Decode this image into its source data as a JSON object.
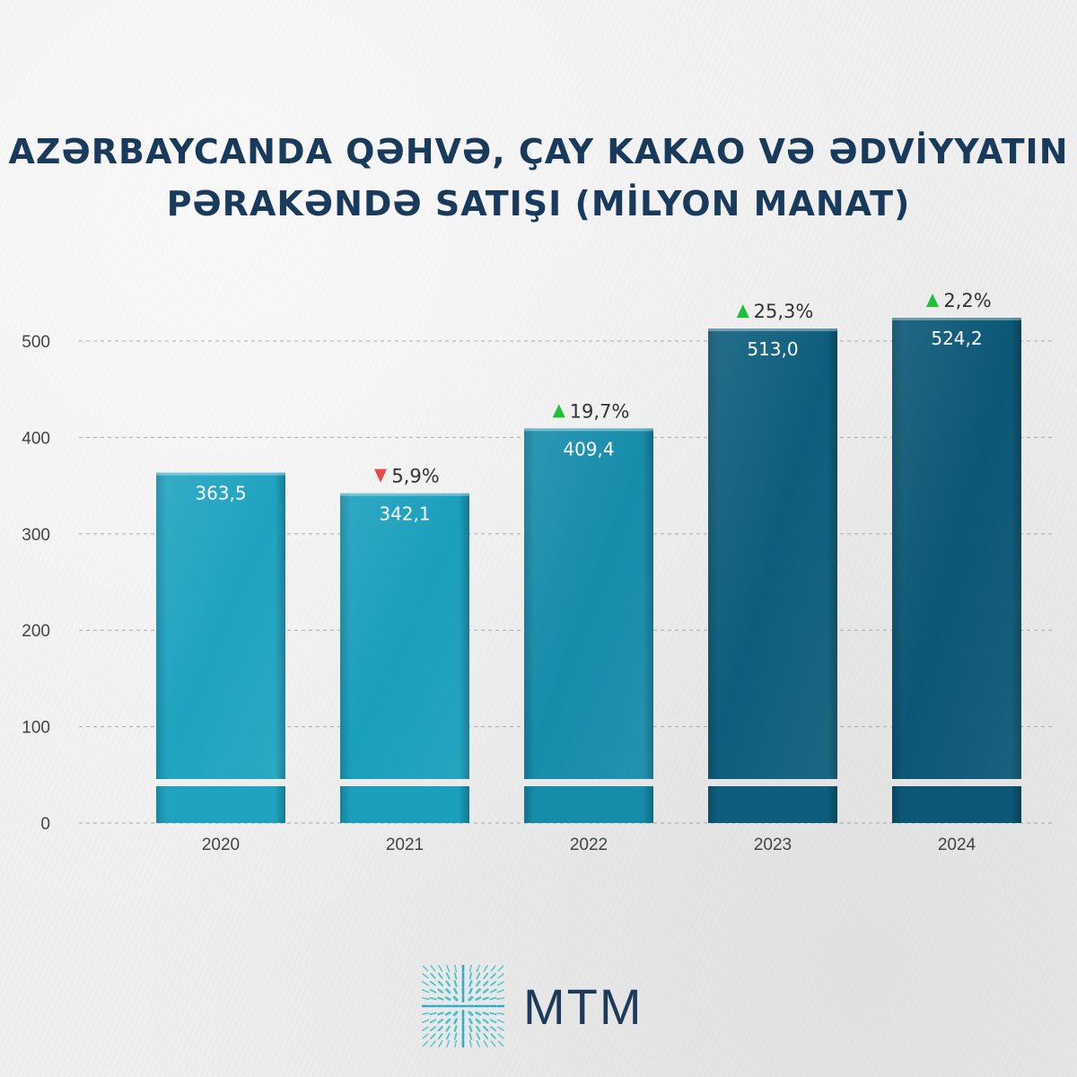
{
  "title": {
    "line1": "AZƏRBAYCANDA QƏHVƏ, ÇAY KAKAO VƏ ƏDVİYYATIN",
    "line2": "PƏRAKƏNDƏ SATIŞI (MİLYON MANAT)"
  },
  "chart_data": {
    "type": "bar",
    "categories": [
      "2020",
      "2021",
      "2022",
      "2023",
      "2024"
    ],
    "values": [
      363.5,
      342.1,
      409.4,
      513.0,
      524.2
    ],
    "value_labels": [
      "363,5",
      "342,1",
      "409,4",
      "513,0",
      "524,2"
    ],
    "changes": [
      null,
      {
        "direction": "down",
        "label": "5,9%"
      },
      {
        "direction": "up",
        "label": "19,7%"
      },
      {
        "direction": "up",
        "label": "25,3%"
      },
      {
        "direction": "up",
        "label": "2,2%"
      }
    ],
    "y_ticks": [
      0,
      100,
      200,
      300,
      400,
      500
    ],
    "ylim": [
      0,
      500
    ],
    "grid": true,
    "axis_break": true,
    "bar_colors": [
      "#1fa3c0",
      "#1a9fbd",
      "#168cab",
      "#0d5e7c",
      "#0b5775"
    ],
    "up_color": "#1fbf3a",
    "down_color": "#e84a4a"
  },
  "brand": {
    "name": "MTM",
    "icon": "mtm-logo-icon"
  }
}
